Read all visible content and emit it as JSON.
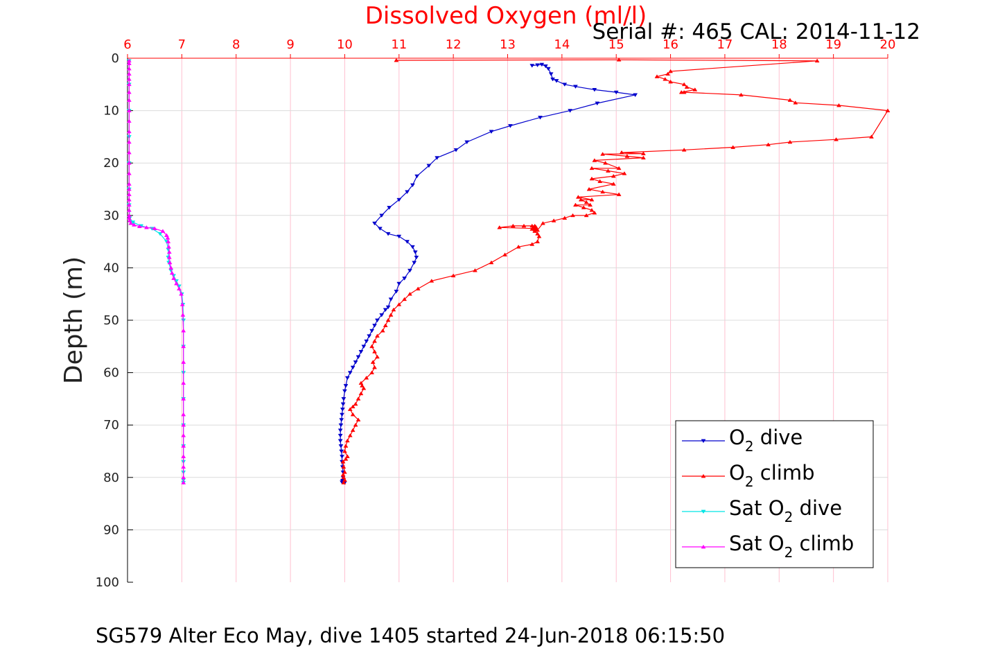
{
  "chart_data": {
    "type": "line",
    "title": "Dissolved Oxygen (ml/l)",
    "subtitle": "Serial #: 465  CAL: 2014-11-12",
    "ylabel": "Depth (m)",
    "footer": "SG579 Alter Eco May, dive 1405 started 24-Jun-2018 06:15:50",
    "xlim": [
      6,
      20
    ],
    "ylim": [
      0,
      100
    ],
    "y_reversed": true,
    "x_axis_position": "top",
    "x_ticks": [
      "6",
      "7",
      "8",
      "9",
      "10",
      "11",
      "12",
      "13",
      "14",
      "15",
      "16",
      "17",
      "18",
      "19",
      "20"
    ],
    "y_ticks": [
      "0",
      "10",
      "20",
      "30",
      "40",
      "50",
      "60",
      "70",
      "80",
      "90",
      "100"
    ],
    "grid": true,
    "legend_position": "bottom-right",
    "legend": [
      {
        "pre": "O",
        "sub": "2",
        "post": " dive",
        "color": "#0000cc"
      },
      {
        "pre": "O",
        "sub": "2",
        "post": " climb",
        "color": "#ff0000"
      },
      {
        "pre": "Sat O",
        "sub": "2",
        "post": " dive",
        "color": "#00e5e5"
      },
      {
        "pre": "Sat O",
        "sub": "2",
        "post": " climb",
        "color": "#ff00ff"
      }
    ],
    "colors": {
      "x_axis": "#ff0000",
      "grid_x": "#ffc0d0",
      "grid_y": "#dcdcdc",
      "axis": "#000000"
    },
    "series": [
      {
        "name": "O2 dive",
        "color": "#0000cc",
        "marker": "down",
        "x": [
          13.45,
          13.55,
          13.63,
          13.7,
          13.75,
          13.8,
          13.83,
          13.9,
          14.05,
          14.25,
          14.6,
          15.0,
          15.35,
          14.65,
          14.15,
          13.6,
          13.05,
          12.7,
          12.25,
          12.05,
          11.7,
          11.55,
          11.33,
          11.25,
          11.15,
          11.0,
          10.82,
          10.68,
          10.55,
          10.65,
          10.8,
          11.0,
          11.15,
          11.25,
          11.3,
          11.32,
          11.28,
          11.2,
          11.1,
          11.0,
          10.95,
          10.85,
          10.8,
          10.75,
          10.68,
          10.6,
          10.55,
          10.5,
          10.45,
          10.4,
          10.35,
          10.3,
          10.25,
          10.2,
          10.15,
          10.1,
          10.05,
          10.02,
          10.0,
          9.98,
          9.97,
          9.96,
          9.95,
          9.94,
          9.93,
          9.92,
          9.92,
          9.92,
          9.93,
          9.94,
          9.95,
          9.95,
          9.96,
          9.97,
          9.97,
          9.96,
          9.95,
          10.0,
          9.98,
          9.98
        ],
        "y": [
          1.4,
          1.3,
          1.2,
          1.5,
          2.0,
          3.0,
          4.0,
          4.3,
          5.0,
          5.4,
          6.0,
          6.5,
          7.0,
          8.6,
          10.0,
          11.3,
          12.9,
          14.0,
          16.0,
          17.5,
          19.0,
          20.5,
          22.5,
          24.2,
          25.5,
          27.0,
          28.5,
          30.0,
          31.5,
          32.5,
          33.5,
          34.0,
          35.0,
          36.0,
          37.0,
          38.0,
          39.0,
          40.5,
          42.0,
          43.0,
          44.5,
          46.0,
          47.5,
          48.0,
          49.0,
          50.0,
          51.0,
          52.0,
          53.0,
          54.0,
          55.0,
          56.0,
          57.0,
          58.0,
          59.0,
          60.0,
          61.0,
          62.5,
          63.5,
          65.0,
          66.0,
          67.0,
          68.0,
          69.0,
          70.0,
          71.0,
          72.0,
          73.0,
          74.0,
          75.0,
          76.0,
          77.0,
          78.0,
          79.0,
          80.0,
          80.6,
          80.9,
          81.0,
          80.8,
          80.7
        ]
      },
      {
        "name": "O2 climb",
        "color": "#ff0000",
        "marker": "up",
        "x": [
          9.98,
          10.0,
          9.98,
          9.97,
          10.0,
          9.98,
          9.97,
          10.02,
          10.05,
          10.0,
          10.02,
          10.05,
          10.1,
          10.15,
          10.2,
          10.25,
          10.15,
          10.1,
          10.15,
          10.2,
          10.25,
          10.3,
          10.35,
          10.32,
          10.3,
          10.4,
          10.5,
          10.55,
          10.52,
          10.6,
          10.55,
          10.5,
          10.55,
          10.6,
          10.7,
          10.75,
          10.8,
          10.85,
          10.9,
          11.0,
          11.1,
          11.2,
          11.35,
          11.6,
          12.0,
          12.4,
          12.7,
          12.95,
          13.2,
          13.45,
          13.55,
          13.58,
          13.55,
          13.5,
          13.52,
          13.48,
          13.52,
          13.5,
          13.45,
          13.3,
          13.1,
          12.85,
          13.5,
          13.45,
          13.5,
          13.55,
          13.65,
          13.85,
          14.05,
          14.2,
          14.45,
          14.6,
          14.55,
          14.4,
          14.25,
          14.52,
          14.45,
          14.35,
          14.55,
          14.3,
          15.05,
          14.75,
          14.5,
          14.95,
          14.7,
          14.55,
          14.95,
          15.15,
          14.85,
          14.55,
          15.05,
          14.8,
          14.6,
          15.5,
          15.2,
          14.75,
          15.5,
          15.1,
          15.1,
          16.25,
          17.15,
          17.8,
          18.2,
          19.05,
          19.7,
          20.0,
          19.1,
          18.3,
          18.2,
          17.3,
          16.25,
          16.2,
          16.45,
          16.3,
          16.25,
          16.0,
          15.9,
          15.75,
          15.95,
          16.0,
          18.7,
          15.05,
          10.95
        ],
        "y": [
          81.0,
          80.5,
          80.0,
          79.5,
          79.0,
          78.0,
          77.0,
          76.5,
          76.0,
          75.0,
          74.0,
          73.0,
          72.0,
          71.0,
          70.0,
          69.0,
          68.0,
          67.0,
          66.5,
          66.0,
          65.0,
          64.0,
          63.0,
          62.5,
          62.0,
          61.0,
          60.0,
          59.0,
          58.0,
          57.0,
          56.0,
          55.0,
          54.0,
          53.0,
          52.0,
          51.0,
          50.0,
          49.0,
          48.0,
          47.0,
          46.0,
          45.0,
          44.0,
          42.5,
          41.5,
          40.5,
          39.0,
          37.5,
          36.0,
          35.5,
          35.0,
          34.0,
          33.5,
          33.0,
          32.5,
          32.3,
          32.2,
          32.0,
          32.0,
          32.0,
          32.0,
          32.3,
          32.5,
          32.6,
          32.7,
          32.8,
          31.5,
          31.0,
          30.5,
          30.0,
          30.0,
          29.5,
          29.0,
          28.5,
          28.0,
          28.0,
          27.5,
          27.0,
          27.0,
          26.5,
          26.0,
          25.5,
          25.0,
          24.0,
          23.5,
          23.0,
          22.5,
          22.0,
          21.5,
          21.0,
          21.0,
          20.0,
          19.5,
          19.0,
          18.7,
          18.3,
          18.2,
          18.0,
          18.0,
          17.5,
          17.0,
          16.5,
          16.0,
          15.5,
          15.0,
          10.0,
          9.0,
          8.5,
          8.0,
          7.0,
          6.5,
          6.5,
          6.0,
          5.5,
          5.0,
          4.5,
          4.0,
          3.5,
          3.0,
          2.5,
          0.5,
          0.3,
          0.4
        ]
      },
      {
        "name": "Sat O2 dive",
        "color": "#00e5e5",
        "marker": "down",
        "x": [
          6.03,
          6.03,
          6.03,
          6.03,
          6.03,
          6.03,
          6.03,
          6.04,
          6.1,
          6.25,
          6.45,
          6.6,
          6.72,
          6.75,
          6.75,
          6.76,
          6.8,
          6.85,
          6.9,
          6.95,
          7.0,
          7.02,
          7.03,
          7.03,
          7.03,
          7.03,
          7.03,
          7.03,
          7.03,
          7.03,
          7.03,
          7.03
        ],
        "y": [
          0.5,
          5.0,
          10.0,
          15.0,
          20.0,
          25.0,
          28.0,
          30.5,
          31.3,
          32.0,
          32.5,
          33.5,
          35.0,
          36.5,
          38.0,
          39.0,
          40.5,
          41.5,
          42.5,
          43.5,
          45.0,
          47.0,
          50.0,
          55.0,
          60.0,
          65.0,
          70.0,
          74.0,
          77.0,
          79.0,
          80.5,
          81.0
        ]
      },
      {
        "name": "Sat O2 climb",
        "color": "#ff00ff",
        "marker": "up",
        "x": [
          7.03,
          7.03,
          7.03,
          7.03,
          7.03,
          7.03,
          7.03,
          7.03,
          7.03,
          7.03,
          7.03,
          7.03,
          7.03,
          7.02,
          7.01,
          6.99,
          6.95,
          6.9,
          6.85,
          6.82,
          6.8,
          6.78,
          6.77,
          6.77,
          6.76,
          6.75,
          6.74,
          6.72,
          6.65,
          6.5,
          6.35,
          6.22,
          6.12,
          6.06,
          6.04,
          6.03,
          6.03,
          6.03,
          6.03,
          6.03,
          6.03,
          6.03,
          6.03,
          6.03,
          6.03,
          6.03,
          6.03,
          6.03,
          6.03,
          6.03,
          6.03,
          6.03,
          6.03,
          6.03,
          6.03,
          6.03,
          6.03,
          6.03
        ],
        "y": [
          81.0,
          80.0,
          78.0,
          76.0,
          74.0,
          72.0,
          70.0,
          68.0,
          65.0,
          62.0,
          58.0,
          55.0,
          52.0,
          49.0,
          47.0,
          45.0,
          44.0,
          43.0,
          42.0,
          41.0,
          40.0,
          39.0,
          38.0,
          37.0,
          36.0,
          35.0,
          34.3,
          33.8,
          33.0,
          32.5,
          32.3,
          32.1,
          31.8,
          31.5,
          31.0,
          30.5,
          30.0,
          29.0,
          28.0,
          27.0,
          26.0,
          25.0,
          24.0,
          22.0,
          20.0,
          18.0,
          16.0,
          14.0,
          12.0,
          10.0,
          8.0,
          6.5,
          5.0,
          4.0,
          3.0,
          2.0,
          1.0,
          0.5
        ]
      }
    ]
  }
}
